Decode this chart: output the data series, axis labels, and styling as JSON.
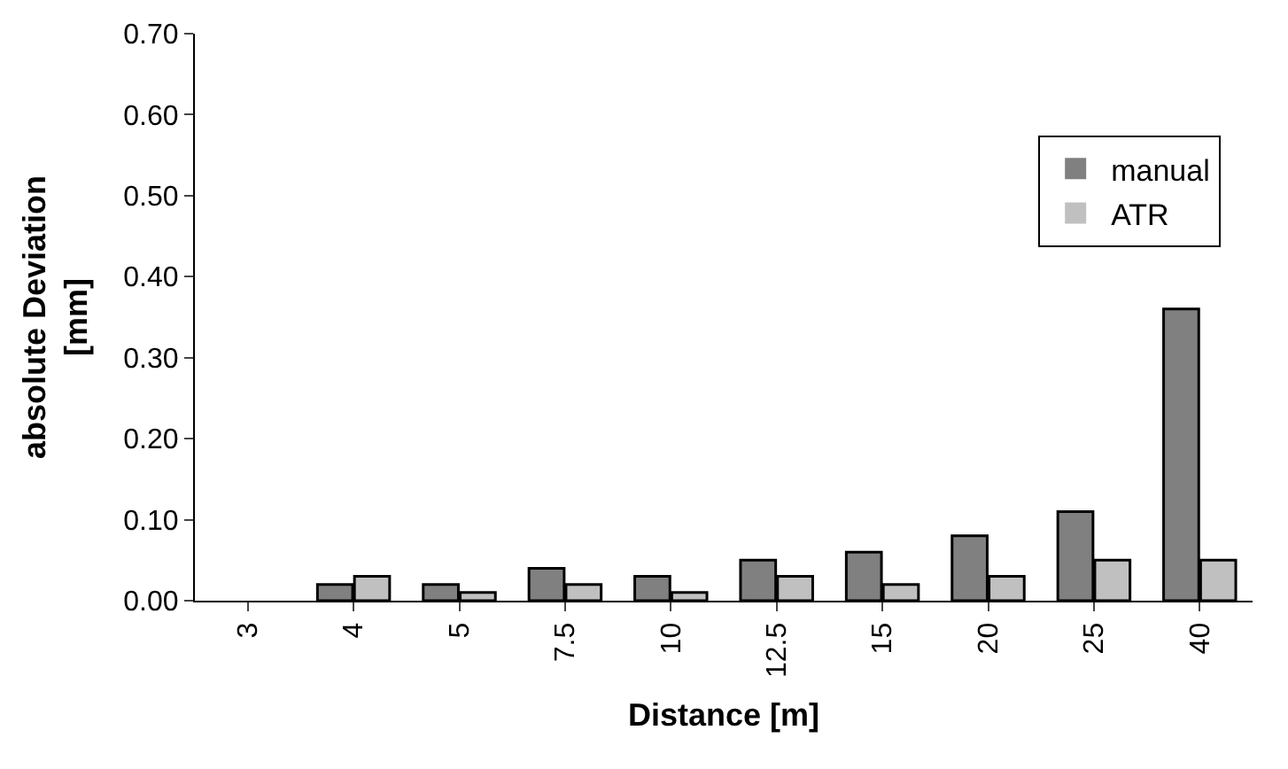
{
  "chart_data": {
    "type": "bar",
    "xlabel": "Distance [m]",
    "ylabel": "absolute Deviation [mm]",
    "categories": [
      "3",
      "4",
      "5",
      "7.5",
      "10",
      "12.5",
      "15",
      "20",
      "25",
      "40"
    ],
    "series": [
      {
        "name": "manual",
        "color": "#808080",
        "values": [
          0,
          0.02,
          0.02,
          0.04,
          0.03,
          0.05,
          0.06,
          0.08,
          0.11,
          0.36
        ]
      },
      {
        "name": "ATR",
        "color": "#c0c0c0",
        "values": [
          0,
          0.03,
          0.01,
          0.02,
          0.01,
          0.03,
          0.02,
          0.03,
          0.05,
          0.05
        ]
      }
    ],
    "ylim": [
      0,
      0.7
    ],
    "yticks": [
      {
        "value": 0,
        "label": "0.00"
      },
      {
        "value": 0.1,
        "label": "0.10"
      },
      {
        "value": 0.2,
        "label": "0.20"
      },
      {
        "value": 0.3,
        "label": "0.30"
      },
      {
        "value": 0.4,
        "label": "0.40"
      },
      {
        "value": 0.5,
        "label": "0.50"
      },
      {
        "value": 0.6,
        "label": "0.60"
      },
      {
        "value": 0.7,
        "label": "0.70"
      }
    ],
    "grid": false,
    "legend": "top right"
  }
}
